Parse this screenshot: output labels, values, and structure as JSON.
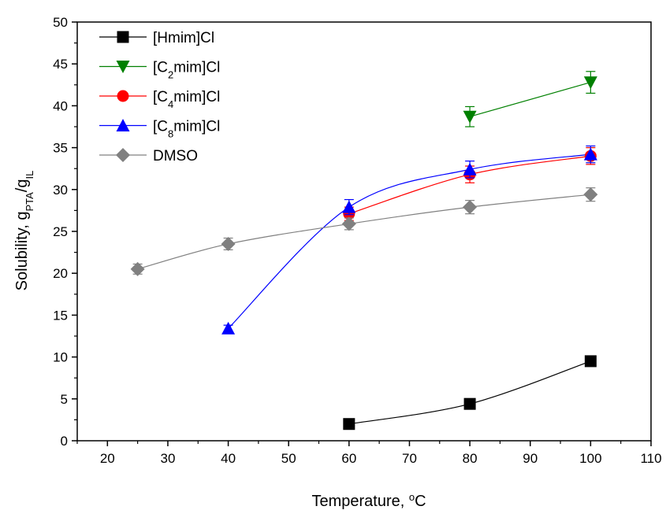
{
  "chart_data": {
    "type": "scatter",
    "title": "",
    "xlabel": {
      "main": "Temperature, ",
      "sup": "o",
      "tail": "C"
    },
    "ylabel": {
      "main": "Solubility, g",
      "sub1": "PTA",
      "mid": "/g",
      "sub2": "IL"
    },
    "xlim": [
      15,
      110
    ],
    "ylim": [
      0,
      50
    ],
    "xticks": [
      20,
      30,
      40,
      50,
      60,
      70,
      80,
      90,
      100,
      110
    ],
    "yticks": [
      0,
      5,
      10,
      15,
      20,
      25,
      30,
      35,
      40,
      45,
      50
    ],
    "grid": false,
    "legend_position": "top-left",
    "series": [
      {
        "name": "[Hmim]Cl",
        "label_parts": [
          [
            "[Hmim]Cl",
            ""
          ]
        ],
        "color": "#000000",
        "marker": "square",
        "x": [
          60,
          80,
          100
        ],
        "y": [
          2.0,
          4.4,
          9.5
        ],
        "err": [
          0.3,
          0.3,
          0.3
        ]
      },
      {
        "name": "[C2mim]Cl",
        "label_parts": [
          [
            "[C",
            ""
          ],
          [
            "2",
            "sub"
          ],
          [
            "mim]Cl",
            ""
          ]
        ],
        "color": "#008000",
        "marker": "triangle-down",
        "x": [
          80,
          100
        ],
        "y": [
          38.7,
          42.8
        ],
        "err": [
          1.2,
          1.3
        ]
      },
      {
        "name": "[C4mim]Cl",
        "label_parts": [
          [
            "[C",
            ""
          ],
          [
            "4",
            "sub"
          ],
          [
            "mim]Cl",
            ""
          ]
        ],
        "color": "#ff0000",
        "marker": "circle",
        "x": [
          60,
          80,
          100
        ],
        "y": [
          27.1,
          31.8,
          34.0
        ],
        "err": [
          0.8,
          1.0,
          1.0
        ]
      },
      {
        "name": "[C8mim]Cl",
        "label_parts": [
          [
            "[C",
            ""
          ],
          [
            "8",
            "sub"
          ],
          [
            "mim]Cl",
            ""
          ]
        ],
        "color": "#0000ff",
        "marker": "triangle-up",
        "x": [
          40,
          60,
          80,
          100
        ],
        "y": [
          13.4,
          27.9,
          32.4,
          34.2
        ],
        "err": [
          0.4,
          0.9,
          1.0,
          1.0
        ]
      },
      {
        "name": "DMSO",
        "label_parts": [
          [
            "DMSO",
            ""
          ]
        ],
        "color": "#808080",
        "marker": "diamond",
        "x": [
          25,
          40,
          60,
          80,
          100
        ],
        "y": [
          20.5,
          23.5,
          25.9,
          27.9,
          29.4
        ],
        "err": [
          0.6,
          0.7,
          0.7,
          0.8,
          0.8
        ]
      }
    ]
  }
}
